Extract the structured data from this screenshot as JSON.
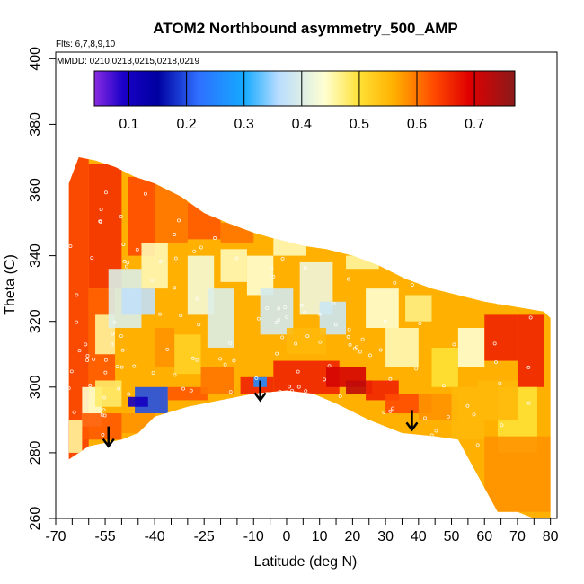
{
  "chart_data": {
    "type": "heatmap",
    "title": "ATOM2 Northbound asymmetry_500_AMP",
    "flights_note": "Flts: 6,7,8,9,10",
    "dates_note": "MMDD: 0210,0213,0215,0218,0219",
    "xlabel": "Latitude (deg N)",
    "ylabel": "Theta (C)",
    "xlim": [
      -70,
      82
    ],
    "ylim": [
      260,
      402
    ],
    "x_ticks": [
      -70,
      -55,
      -40,
      -25,
      -10,
      0,
      10,
      20,
      30,
      40,
      50,
      60,
      70,
      80
    ],
    "x_ticks_labels": [
      "-70",
      "-55",
      "-40",
      "-25",
      "-10",
      "0",
      "10",
      "20",
      "30",
      "40",
      "50",
      "60",
      "70",
      "80"
    ],
    "x_minor_ticks": [
      -65,
      -60,
      -50,
      -45,
      -35,
      -30,
      -20,
      -15,
      -5,
      5,
      15,
      25,
      35,
      45,
      55,
      65,
      75
    ],
    "y_ticks": [
      260,
      280,
      300,
      320,
      340,
      360,
      380,
      400
    ],
    "y_ticks_labels": [
      "260",
      "280",
      "300",
      "320",
      "340",
      "360",
      "380",
      "400"
    ],
    "colorbar": {
      "range": [
        0.04,
        0.77
      ],
      "ticks": [
        0.1,
        0.2,
        0.3,
        0.4,
        0.5,
        0.6,
        0.7
      ],
      "ticks_labels": [
        "0.1",
        "0.2",
        "0.3",
        "0.4",
        "0.5",
        "0.6",
        "0.7"
      ],
      "stops": [
        {
          "v": 0.04,
          "c": "#8a2be2"
        },
        {
          "v": 0.09,
          "c": "#1a00c8"
        },
        {
          "v": 0.15,
          "c": "#0000a0"
        },
        {
          "v": 0.22,
          "c": "#2f6fff"
        },
        {
          "v": 0.3,
          "c": "#14aaff"
        },
        {
          "v": 0.36,
          "c": "#b9dcff"
        },
        {
          "v": 0.44,
          "c": "#ffffd0"
        },
        {
          "v": 0.5,
          "c": "#ffe135"
        },
        {
          "v": 0.56,
          "c": "#ffb000"
        },
        {
          "v": 0.63,
          "c": "#ff4a00"
        },
        {
          "v": 0.69,
          "c": "#e00000"
        },
        {
          "v": 0.77,
          "c": "#8b1a1a"
        }
      ]
    },
    "coverage": {
      "top": [
        [
          -66,
          362
        ],
        [
          -63,
          370
        ],
        [
          -58,
          369
        ],
        [
          -52,
          367
        ],
        [
          -46,
          364
        ],
        [
          -40,
          362
        ],
        [
          -32,
          358
        ],
        [
          -25,
          353
        ],
        [
          -18,
          350
        ],
        [
          -10,
          347
        ],
        [
          -3,
          345
        ],
        [
          5,
          343
        ],
        [
          12,
          342
        ],
        [
          20,
          340
        ],
        [
          28,
          337
        ],
        [
          36,
          333
        ],
        [
          44,
          330
        ],
        [
          52,
          328
        ],
        [
          60,
          326
        ],
        [
          66,
          325
        ],
        [
          72,
          324
        ],
        [
          78,
          323
        ],
        [
          80,
          321
        ]
      ],
      "bottom": [
        [
          -66,
          278
        ],
        [
          -60,
          282
        ],
        [
          -50,
          284
        ],
        [
          -45,
          286
        ],
        [
          -40,
          291
        ],
        [
          -30,
          294
        ],
        [
          -20,
          296
        ],
        [
          -10,
          298
        ],
        [
          0,
          299
        ],
        [
          8,
          298
        ],
        [
          15,
          295
        ],
        [
          25,
          290
        ],
        [
          35,
          286
        ],
        [
          45,
          285
        ],
        [
          52,
          284
        ],
        [
          58,
          273
        ],
        [
          64,
          262
        ],
        [
          70,
          262
        ],
        [
          75,
          260
        ],
        [
          80,
          260
        ]
      ]
    },
    "arrows": [
      {
        "lat": -54,
        "theta_top": 288,
        "theta_bottom": 282
      },
      {
        "lat": -8,
        "theta_top": 302,
        "theta_bottom": 296
      },
      {
        "lat": 38,
        "theta_top": 293,
        "theta_bottom": 287
      }
    ]
  }
}
